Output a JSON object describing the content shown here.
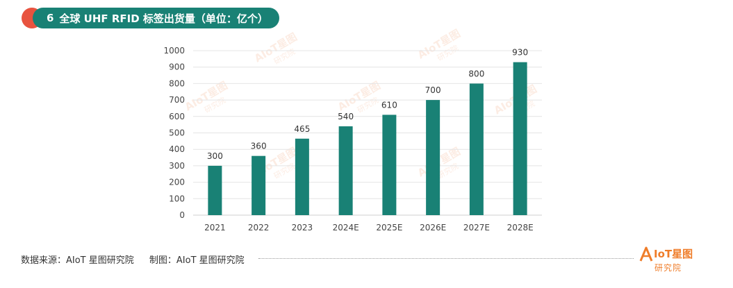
{
  "title": {
    "number": "6",
    "text": "全球 UHF RFID 标签出货量（单位：亿个）"
  },
  "chart_data": {
    "type": "bar",
    "categories": [
      "2021",
      "2022",
      "2023",
      "2024E",
      "2025E",
      "2026E",
      "2027E",
      "2028E"
    ],
    "values": [
      300,
      360,
      465,
      540,
      610,
      700,
      800,
      930
    ],
    "ylim": [
      0,
      1000
    ],
    "yticks": [
      0,
      100,
      200,
      300,
      400,
      500,
      600,
      700,
      800,
      900,
      1000
    ],
    "grid": true,
    "bar_color": "#198175",
    "data_labels": true
  },
  "watermark": {
    "brand": "AIoT星图",
    "sub": "研究院"
  },
  "footer": {
    "source": "数据来源：AIoT 星图研究院",
    "made_by": "制图：AIoT 星图研究院"
  },
  "logo": {
    "brand": "IoT星图",
    "sub": "研究院"
  },
  "colors": {
    "accent": "#198175",
    "title_dot": "#e8533f",
    "logo": "#ef7d2a"
  }
}
